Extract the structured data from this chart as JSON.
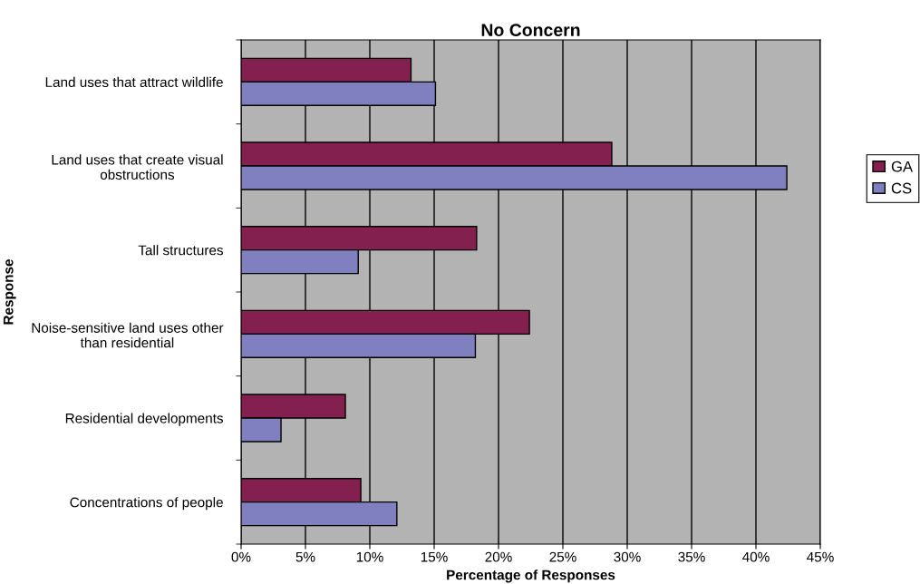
{
  "chart_data": {
    "type": "bar",
    "orientation": "horizontal",
    "title": "No Concern",
    "xlabel": "Percentage of Responses",
    "ylabel": "Response",
    "categories": [
      "Land uses that attract wildlife",
      "Land uses that create visual obstructions",
      "Tall structures",
      "Noise-sensitive land uses other than residential",
      "Residential developments",
      "Concentrations of people"
    ],
    "series": [
      {
        "name": "GA",
        "color": "#84204f",
        "values": [
          13.2,
          28.8,
          18.3,
          22.4,
          8.1,
          9.3
        ]
      },
      {
        "name": "CS",
        "color": "#8080c0",
        "values": [
          15.1,
          42.4,
          9.1,
          18.2,
          3.1,
          12.1
        ]
      }
    ],
    "xlim": [
      0,
      45
    ],
    "xticks": [
      {
        "value": 0,
        "label": "0%"
      },
      {
        "value": 5,
        "label": "5%"
      },
      {
        "value": 10,
        "label": "10%"
      },
      {
        "value": 15,
        "label": "15%"
      },
      {
        "value": 20,
        "label": "20%"
      },
      {
        "value": 25,
        "label": "25%"
      },
      {
        "value": 30,
        "label": "30%"
      },
      {
        "value": 35,
        "label": "35%"
      },
      {
        "value": 40,
        "label": "40%"
      },
      {
        "value": 45,
        "label": "45%"
      }
    ],
    "grid": "x",
    "legend": "right"
  }
}
